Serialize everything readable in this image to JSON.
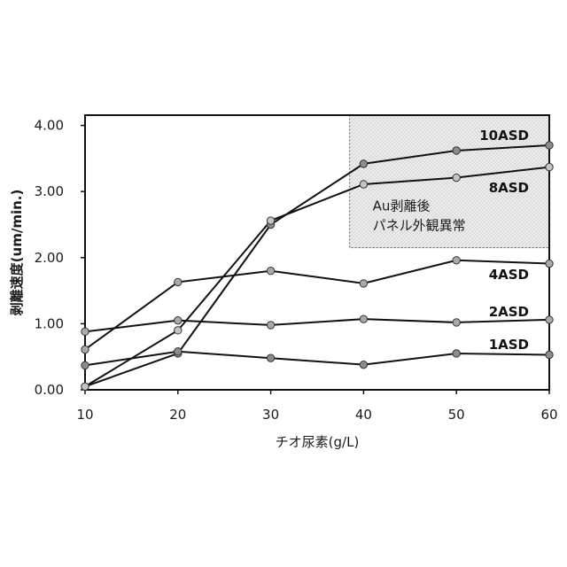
{
  "chart_data": {
    "type": "line",
    "title": "",
    "xlabel": "チオ尿素(g/L)",
    "ylabel": "剥離速度(um/min.)",
    "x": [
      10,
      20,
      30,
      40,
      50,
      60
    ],
    "xticks": [
      "10",
      "20",
      "30",
      "40",
      "50",
      "60"
    ],
    "yticks": [
      "0.00",
      "1.00",
      "2.00",
      "3.00",
      "4.00"
    ],
    "xlim": [
      10,
      60
    ],
    "ylim": [
      0,
      4.15
    ],
    "grid": false,
    "legend": "none",
    "series": [
      {
        "name": "10ASD",
        "values": [
          0.05,
          0.55,
          2.5,
          3.42,
          3.62,
          3.7
        ],
        "marker_color": "#8c8c8c"
      },
      {
        "name": "8ASD",
        "values": [
          0.05,
          0.9,
          2.56,
          3.11,
          3.21,
          3.37
        ],
        "marker_color": "#c4c4c4"
      },
      {
        "name": "4ASD",
        "values": [
          0.61,
          1.63,
          1.8,
          1.61,
          1.96,
          1.91
        ],
        "marker_color": "#a9a9a9"
      },
      {
        "name": "2ASD",
        "values": [
          0.88,
          1.05,
          0.98,
          1.07,
          1.02,
          1.06
        ],
        "marker_color": "#a9a9a9"
      },
      {
        "name": "1ASD",
        "values": [
          0.37,
          0.58,
          0.48,
          0.38,
          0.55,
          0.53
        ],
        "marker_color": "#8c8c8c"
      }
    ],
    "annotation": {
      "lines": [
        "Au剥離後",
        "パネル外観異常"
      ],
      "x_range": [
        38.5,
        60
      ],
      "y_range": [
        2.15,
        4.15
      ],
      "fill_color": "#ececec"
    },
    "line_color": "#111111"
  }
}
